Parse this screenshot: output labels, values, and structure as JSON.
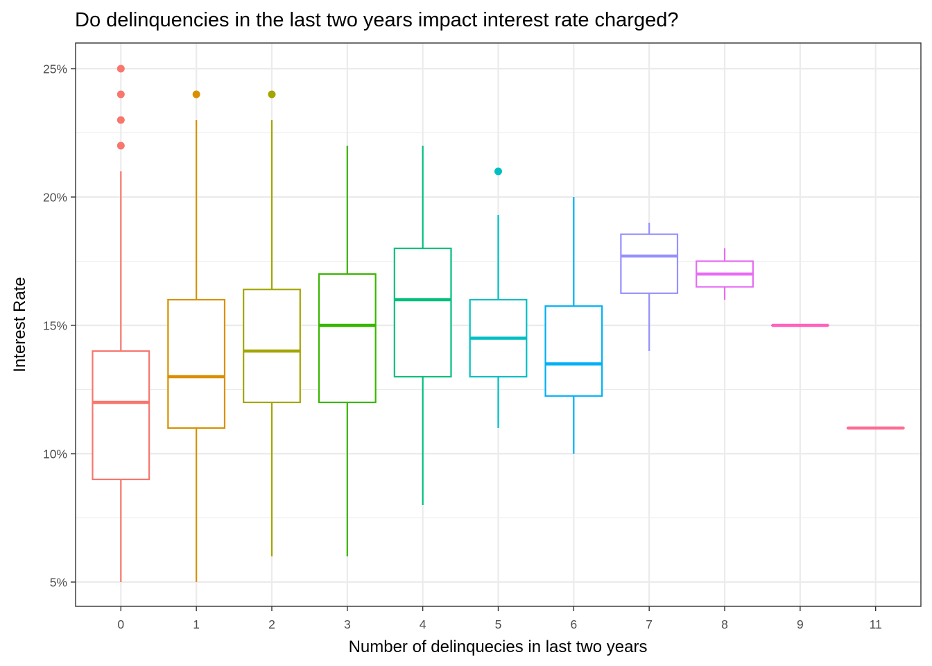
{
  "chart_data": {
    "type": "boxplot",
    "title": "Do delinquencies in the last two years impact interest rate charged?",
    "xlabel": "Number of delinquecies in last two years",
    "ylabel": "Interest Rate",
    "ylim": [
      4,
      26
    ],
    "yticks": [
      5,
      10,
      15,
      20,
      25
    ],
    "ytick_labels": [
      "5%",
      "10%",
      "15%",
      "20%",
      "25%"
    ],
    "grid": true,
    "legend": "none",
    "boxes": [
      {
        "category": "0",
        "color": "#F8766D",
        "min": 5,
        "q1": 9,
        "median": 12,
        "q3": 14,
        "max": 21,
        "outliers": [
          22,
          23,
          24,
          25
        ]
      },
      {
        "category": "1",
        "color": "#D89000",
        "min": 5,
        "q1": 11,
        "median": 13,
        "q3": 16,
        "max": 23,
        "outliers": [
          24
        ]
      },
      {
        "category": "2",
        "color": "#A3A500",
        "min": 6,
        "q1": 12,
        "median": 14,
        "q3": 16.4,
        "max": 23,
        "outliers": [
          24
        ]
      },
      {
        "category": "3",
        "color": "#39B600",
        "min": 6,
        "q1": 12,
        "median": 15,
        "q3": 17,
        "max": 22,
        "outliers": []
      },
      {
        "category": "4",
        "color": "#00BF7D",
        "min": 8,
        "q1": 13,
        "median": 16,
        "q3": 18,
        "max": 22,
        "outliers": []
      },
      {
        "category": "5",
        "color": "#00BFC4",
        "min": 11,
        "q1": 13,
        "median": 14.5,
        "q3": 16,
        "max": 19.3,
        "outliers": [
          21
        ]
      },
      {
        "category": "6",
        "color": "#00B0F6",
        "min": 10,
        "q1": 12.25,
        "median": 13.5,
        "q3": 15.75,
        "max": 20,
        "outliers": []
      },
      {
        "category": "7",
        "color": "#9590FF",
        "min": 14,
        "q1": 16.25,
        "median": 17.7,
        "q3": 18.55,
        "max": 19,
        "outliers": []
      },
      {
        "category": "8",
        "color": "#E76BF3",
        "min": 16,
        "q1": 16.5,
        "median": 17,
        "q3": 17.5,
        "max": 18,
        "outliers": []
      },
      {
        "category": "9",
        "color": "#FF62BC",
        "min": 15,
        "q1": 15,
        "median": 15,
        "q3": 15,
        "max": 15,
        "outliers": []
      },
      {
        "category": "11",
        "color": "#FF6C91",
        "min": 11,
        "q1": 11,
        "median": 11,
        "q3": 11,
        "max": 11,
        "outliers": []
      }
    ]
  }
}
